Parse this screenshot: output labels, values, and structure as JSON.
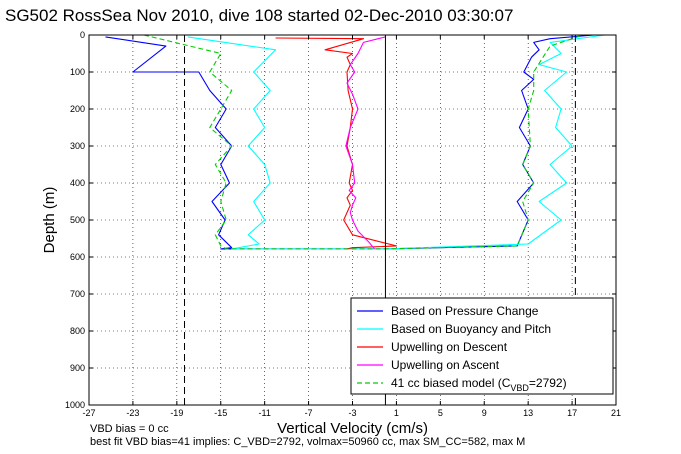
{
  "chart_data": {
    "type": "line",
    "title": "SG502 RossSea Nov 2010, dive 108 started 02-Dec-2010 03:30:07",
    "xlabel": "Vertical Velocity (cm/s)",
    "ylabel": "Depth (m)",
    "xlim": [
      -27,
      21
    ],
    "ylim": [
      1000,
      0
    ],
    "y_reversed": true,
    "grid": true,
    "xticks": [
      -27,
      -23,
      -19,
      -15,
      -11,
      -7,
      -3,
      1,
      5,
      9,
      13,
      17,
      21
    ],
    "yticks": [
      0,
      100,
      200,
      300,
      400,
      500,
      600,
      700,
      800,
      900,
      1000
    ],
    "legend_position": "bottom-right",
    "legend": [
      {
        "label": "Based on Pressure Change",
        "color": "#0000ff",
        "dash": "solid"
      },
      {
        "label": "Based on Buoyancy and Pitch",
        "color": "#00ffff",
        "dash": "solid"
      },
      {
        "label": "Upwelling on Descent",
        "color": "#ff0000",
        "dash": "solid"
      },
      {
        "label": "Upwelling on Ascent",
        "color": "#ff00ff",
        "dash": "solid"
      },
      {
        "label": "41 cc biased model (C",
        "label_sub": "VBD",
        "label_tail": "=2792)",
        "color": "#00cc00",
        "dash": "dashed"
      }
    ],
    "reference_lines": [
      {
        "orientation": "vertical",
        "x": 0,
        "style": "solid",
        "color": "#000000"
      },
      {
        "orientation": "vertical",
        "x": -18.3,
        "style": "dashed",
        "color": "#000000"
      },
      {
        "orientation": "vertical",
        "x": 17.3,
        "style": "dashed",
        "color": "#000000"
      }
    ],
    "series": [
      {
        "name": "Based on Pressure Change",
        "color": "#0000ff",
        "x": [
          -25.5,
          -20,
          -23,
          -17,
          -16,
          -14.5,
          -15.5,
          -14,
          -15,
          -14.2,
          -15.8,
          -14.6,
          -15.2,
          -14,
          -15,
          -14.5,
          -13.8,
          -14.5,
          -15,
          0,
          12,
          13,
          12,
          13.5,
          12.5,
          13.2,
          12.2,
          13,
          12.4,
          13.5,
          12.6,
          13.3,
          14,
          13.5,
          15,
          19
        ],
        "y": [
          5,
          30,
          100,
          100,
          150,
          200,
          250,
          300,
          350,
          400,
          450,
          500,
          540,
          575,
          578,
          578,
          578,
          578,
          578,
          578,
          570,
          500,
          450,
          400,
          350,
          300,
          250,
          200,
          150,
          120,
          100,
          60,
          40,
          20,
          10,
          0
        ]
      },
      {
        "name": "Based on Buoyancy and Pitch",
        "color": "#00ffff",
        "x": [
          -18,
          -10,
          -12,
          -10.5,
          -12,
          -11,
          -12.5,
          -11,
          -10.5,
          -12,
          -11,
          -12.5,
          -11.5,
          -14,
          -13,
          0,
          13,
          16,
          14,
          16.5,
          15,
          17,
          15.5,
          16,
          14.5,
          16.5,
          14,
          16,
          15,
          20
        ],
        "y": [
          5,
          40,
          100,
          150,
          200,
          250,
          300,
          350,
          400,
          450,
          500,
          540,
          565,
          578,
          578,
          578,
          565,
          500,
          450,
          400,
          350,
          300,
          250,
          200,
          150,
          100,
          80,
          50,
          20,
          0
        ]
      },
      {
        "name": "Upwelling on Descent",
        "color": "#ff0000",
        "x": [
          -10,
          -2,
          -5.5,
          -3,
          -3.5,
          -3.2,
          -3.5,
          -3.4,
          -3.0,
          -3.2,
          -3.5,
          -3,
          -3.3,
          -3,
          -3.5,
          -3.2,
          -3.8,
          -3,
          1,
          -3,
          -3.5,
          -3.8
        ],
        "y": [
          8,
          10,
          40,
          50,
          60,
          80,
          100,
          150,
          200,
          250,
          300,
          350,
          400,
          420,
          440,
          460,
          500,
          540,
          570,
          575,
          578,
          578
        ]
      },
      {
        "name": "Upwelling on Ascent",
        "color": "#ff00ff",
        "x": [
          0,
          -2,
          -2.5,
          -3.2,
          -2.8,
          -3.5,
          -3,
          -2.5,
          -3.2,
          -3.6,
          -3,
          -2.8,
          -3.3,
          -2.7,
          -3,
          -3.2,
          -3,
          -2.5,
          -1.5,
          -1
        ],
        "y": [
          5,
          20,
          50,
          80,
          100,
          130,
          160,
          200,
          250,
          300,
          350,
          400,
          420,
          440,
          460,
          480,
          500,
          530,
          560,
          578
        ]
      },
      {
        "name": "41 cc biased model (CVBD=2792)",
        "color": "#00cc00",
        "dash": "dashed",
        "x": [
          -22,
          -15,
          -16,
          -14,
          -15,
          -16,
          -14,
          -15.5,
          -14.5,
          -15,
          -14.5,
          -15.5,
          -15,
          -14.5,
          0,
          12,
          13,
          12.5,
          13.5,
          12.5,
          13.2,
          13,
          13.5,
          13.5,
          15,
          18
        ],
        "y": [
          0,
          50,
          100,
          150,
          200,
          250,
          300,
          350,
          400,
          450,
          500,
          540,
          570,
          578,
          578,
          570,
          500,
          450,
          400,
          350,
          300,
          200,
          150,
          100,
          30,
          0
        ]
      }
    ],
    "annotations": [
      "VBD bias = 0 cc",
      "best fit VBD bias=41 implies: C_VBD=2792, volmax=50960 cc, max SM_CC=582, max M"
    ]
  }
}
